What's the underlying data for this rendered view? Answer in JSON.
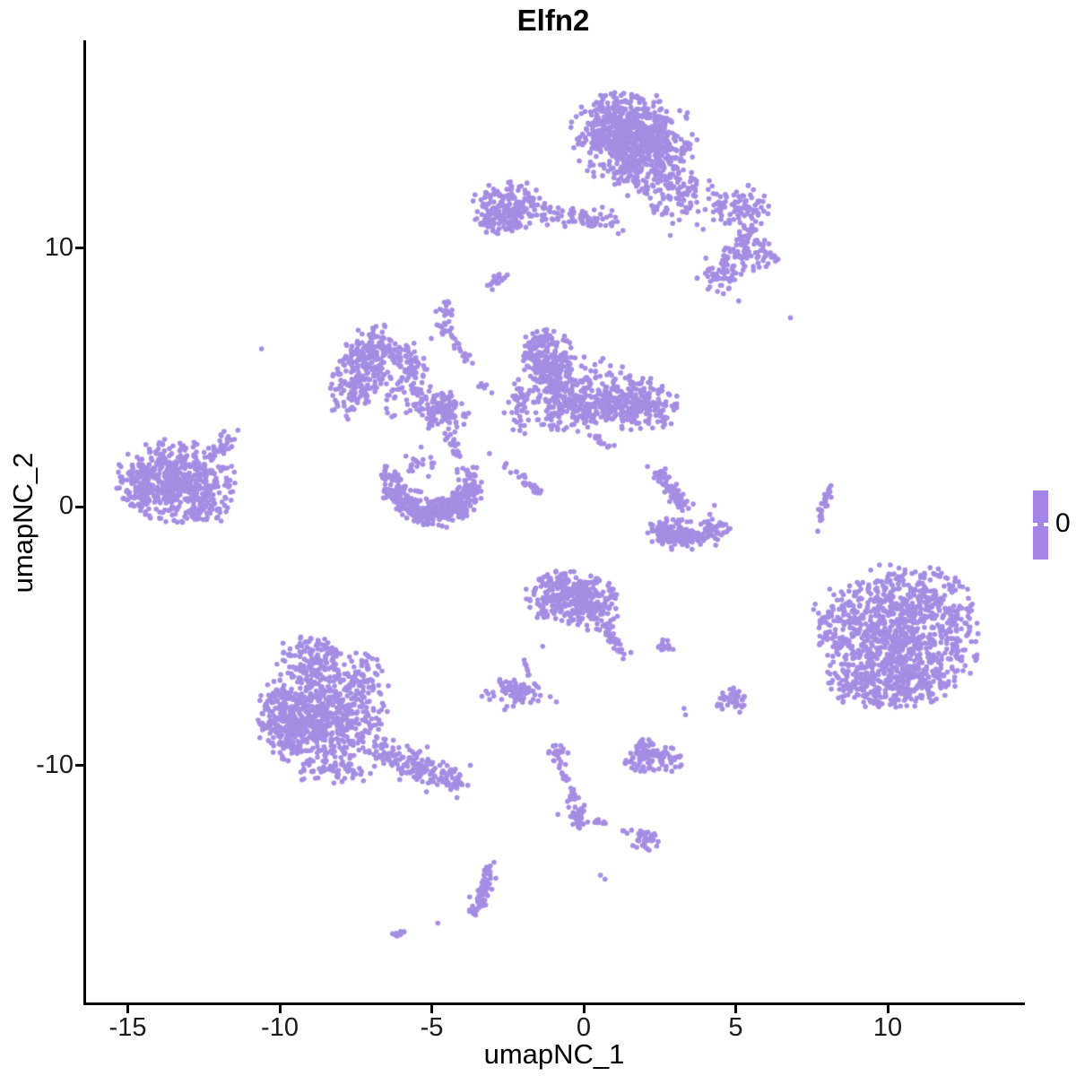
{
  "chart_data": {
    "type": "scatter",
    "title": "Elfn2",
    "xlabel": "umapNC_1",
    "ylabel": "umapNC_2",
    "x_ticks": [
      -15,
      -10,
      -5,
      0,
      5,
      10
    ],
    "y_ticks": [
      -10,
      0,
      10
    ],
    "x_range": [
      -16.4,
      14.5
    ],
    "y_range": [
      -19.2,
      18.0
    ],
    "point_color": "#A58DE3",
    "legend": {
      "label": "0",
      "bar_color": "#A586E8"
    },
    "clusters": [
      {
        "type": "blob",
        "n": 380,
        "cx": 1.2,
        "cy": 14.7,
        "sx": 0.75,
        "sy": 0.6,
        "clip": 2.2
      },
      {
        "type": "blob",
        "n": 320,
        "cx": 2.0,
        "cy": 13.8,
        "sx": 0.75,
        "sy": 0.65,
        "clip": 2.2
      },
      {
        "type": "blob",
        "n": 140,
        "cx": 1.6,
        "cy": 14.2,
        "sx": 1.2,
        "sy": 1.05,
        "clip": 1.8
      },
      {
        "type": "line",
        "n": 50,
        "x1": 0.9,
        "y1": 12.9,
        "x2": 2.6,
        "y2": 12.4,
        "jitter": 0.3
      },
      {
        "type": "line",
        "n": 70,
        "x1": 2.6,
        "y1": 12.5,
        "x2": 4.4,
        "y2": 11.4,
        "jitter": 0.4
      },
      {
        "type": "blob",
        "n": 50,
        "cx": 2.9,
        "cy": 11.8,
        "sx": 0.5,
        "sy": 0.8,
        "clip": 2
      },
      {
        "type": "blob",
        "n": 80,
        "cx": 5.25,
        "cy": 11.55,
        "sx": 0.45,
        "sy": 0.5,
        "clip": 2
      },
      {
        "type": "line",
        "n": 15,
        "x1": 5.35,
        "y1": 11.0,
        "x2": 5.45,
        "y2": 10.3,
        "jitter": 0.15
      },
      {
        "type": "blob",
        "n": 70,
        "cx": 5.45,
        "cy": 9.8,
        "sx": 0.5,
        "sy": 0.45,
        "clip": 2
      },
      {
        "type": "blob",
        "n": 60,
        "cx": 4.5,
        "cy": 8.95,
        "sx": 0.45,
        "sy": 0.4,
        "clip": 2
      },
      {
        "type": "blob",
        "n": 6,
        "cx": 6.15,
        "cy": 9.7,
        "sx": 0.15,
        "sy": 0.2,
        "clip": 2
      },
      {
        "type": "blob",
        "n": 200,
        "cx": -2.4,
        "cy": 11.6,
        "sx": 0.7,
        "sy": 0.5,
        "clip": 2
      },
      {
        "type": "blob",
        "n": 50,
        "cx": -2.7,
        "cy": 10.95,
        "sx": 0.5,
        "sy": 0.25,
        "clip": 2
      },
      {
        "type": "line",
        "n": 60,
        "x1": -1.3,
        "y1": 11.35,
        "x2": 1.25,
        "y2": 11.0,
        "jitter": 0.18
      },
      {
        "type": "line",
        "n": 20,
        "x1": -3.1,
        "y1": 8.45,
        "x2": -2.65,
        "y2": 8.95,
        "jitter": 0.07
      },
      {
        "type": "blob",
        "n": 30,
        "cx": -4.6,
        "cy": 7.3,
        "sx": 0.18,
        "sy": 0.38,
        "clip": 2
      },
      {
        "type": "line",
        "n": 16,
        "x1": -4.35,
        "y1": 6.6,
        "x2": -3.7,
        "y2": 5.45,
        "jitter": 0.08
      },
      {
        "type": "line",
        "n": 8,
        "x1": -3.45,
        "y1": 4.75,
        "x2": -3.05,
        "y2": 4.4,
        "jitter": 0.06
      },
      {
        "type": "blob",
        "n": 240,
        "cx": -7.35,
        "cy": 5.25,
        "sx": 0.42,
        "sy": 1.0,
        "rot": -18,
        "clip": 2
      },
      {
        "type": "line",
        "n": 60,
        "x1": -7.0,
        "y1": 6.1,
        "x2": -5.4,
        "y2": 5.7,
        "jitter": 0.22
      },
      {
        "type": "blob",
        "n": 70,
        "cx": -5.9,
        "cy": 4.6,
        "sx": 0.7,
        "sy": 0.6,
        "clip": 2
      },
      {
        "type": "blob",
        "n": 25,
        "cx": -5.7,
        "cy": 5.25,
        "sx": 0.3,
        "sy": 0.18,
        "clip": 2
      },
      {
        "type": "blob",
        "n": 130,
        "cx": -4.65,
        "cy": 3.7,
        "sx": 0.5,
        "sy": 0.38,
        "clip": 2
      },
      {
        "type": "line",
        "n": 22,
        "x1": -4.5,
        "y1": 3.15,
        "x2": -4.2,
        "y2": 1.95,
        "jitter": 0.1
      },
      {
        "type": "blob",
        "n": 240,
        "cx": -1.15,
        "cy": 5.45,
        "sx": 0.45,
        "sy": 0.7,
        "clip": 2
      },
      {
        "type": "blob",
        "n": 240,
        "cx": -0.35,
        "cy": 3.95,
        "sx": 0.85,
        "sy": 0.55,
        "clip": 2
      },
      {
        "type": "blob",
        "n": 200,
        "cx": 1.75,
        "cy": 3.95,
        "sx": 0.7,
        "sy": 0.5,
        "clip": 2
      },
      {
        "type": "blob",
        "n": 90,
        "cx": 0.55,
        "cy": 4.5,
        "sx": 1.0,
        "sy": 0.75,
        "clip": 1.8
      },
      {
        "type": "blob",
        "n": 45,
        "cx": -2.05,
        "cy": 3.9,
        "sx": 0.3,
        "sy": 0.55,
        "clip": 2
      },
      {
        "type": "blob",
        "n": 30,
        "cx": -1.5,
        "cy": 6.3,
        "sx": 0.25,
        "sy": 0.3,
        "clip": 2
      },
      {
        "type": "line",
        "n": 12,
        "x1": 0.2,
        "y1": 2.8,
        "x2": 0.9,
        "y2": 2.35,
        "jitter": 0.12
      },
      {
        "type": "blob",
        "n": 8,
        "cx": 2.7,
        "cy": 3.3,
        "sx": 0.15,
        "sy": 0.15,
        "clip": 2
      },
      {
        "type": "line",
        "n": 30,
        "x1": -2.6,
        "y1": 1.7,
        "x2": -1.4,
        "y2": 0.4,
        "jitter": 0.07
      },
      {
        "type": "blob",
        "n": 550,
        "cx": -13.4,
        "cy": 1.0,
        "sx": 1.0,
        "sy": 0.8,
        "clip": 2.05
      },
      {
        "type": "line",
        "n": 25,
        "x1": -12.3,
        "y1": 2.0,
        "x2": -11.4,
        "y2": 2.75,
        "jitter": 0.13
      },
      {
        "type": "blob",
        "n": 45,
        "cx": -12.4,
        "cy": -0.15,
        "sx": 0.45,
        "sy": 0.3,
        "clip": 2
      },
      {
        "type": "blob",
        "n": 60,
        "cx": -14.5,
        "cy": 0.7,
        "sx": 0.3,
        "sy": 0.5,
        "clip": 2
      },
      {
        "type": "arc",
        "n": 270,
        "cx": -4.95,
        "cy": 0.9,
        "r": 1.3,
        "a1": 185,
        "a2": 355,
        "jr": 0.2
      },
      {
        "type": "arc",
        "n": 90,
        "cx": -4.95,
        "cy": 0.9,
        "r": 0.95,
        "a1": 205,
        "a2": 335,
        "jr": 0.18
      },
      {
        "type": "blob",
        "n": 40,
        "cx": -6.3,
        "cy": 0.9,
        "sx": 0.22,
        "sy": 0.4,
        "clip": 2
      },
      {
        "type": "blob",
        "n": 45,
        "cx": -3.8,
        "cy": 0.95,
        "sx": 0.22,
        "sy": 0.45,
        "clip": 2
      },
      {
        "type": "blob",
        "n": 18,
        "cx": -5.4,
        "cy": 1.7,
        "sx": 0.5,
        "sy": 0.3,
        "clip": 2
      },
      {
        "type": "line",
        "n": 80,
        "x1": 2.45,
        "y1": 1.35,
        "x2": 3.3,
        "y2": 0.0,
        "jitter": 0.15
      },
      {
        "type": "arc",
        "n": 160,
        "cx": 3.4,
        "cy": 0.2,
        "r": 1.45,
        "a1": 215,
        "a2": 325,
        "jr": 0.2
      },
      {
        "type": "blob",
        "n": 60,
        "cx": 3.0,
        "cy": -1.05,
        "sx": 0.45,
        "sy": 0.3,
        "clip": 2
      },
      {
        "type": "line",
        "n": 30,
        "x1": 8.1,
        "y1": 0.8,
        "x2": 7.75,
        "y2": -0.7,
        "jitter": 0.06
      },
      {
        "type": "blob",
        "n": 750,
        "cx": 10.3,
        "cy": -5.3,
        "sx": 1.3,
        "sy": 1.2,
        "clip": 2.1
      },
      {
        "type": "blob",
        "n": 150,
        "cx": 10.6,
        "cy": -3.3,
        "sx": 1.1,
        "sy": 0.6,
        "clip": 2
      },
      {
        "type": "blob",
        "n": 70,
        "cx": 8.4,
        "cy": -4.6,
        "sx": 0.5,
        "sy": 0.85,
        "clip": 2
      },
      {
        "type": "blob",
        "n": 180,
        "cx": 10.0,
        "cy": -6.9,
        "sx": 1.0,
        "sy": 0.5,
        "clip": 2
      },
      {
        "type": "blob",
        "n": 60,
        "cx": 12.3,
        "cy": -4.6,
        "sx": 0.35,
        "sy": 0.8,
        "clip": 2
      },
      {
        "type": "blob",
        "n": 260,
        "cx": -0.45,
        "cy": -3.55,
        "sx": 0.8,
        "sy": 0.55,
        "clip": 2
      },
      {
        "type": "blob",
        "n": 50,
        "cx": -0.7,
        "cy": -2.95,
        "sx": 0.45,
        "sy": 0.25,
        "clip": 2
      },
      {
        "type": "blob",
        "n": 70,
        "cx": 0.35,
        "cy": -4.0,
        "sx": 0.45,
        "sy": 0.45,
        "clip": 2
      },
      {
        "type": "line",
        "n": 35,
        "x1": 0.75,
        "y1": -4.55,
        "x2": 1.3,
        "y2": -5.8,
        "jitter": 0.1
      },
      {
        "type": "blob",
        "n": 12,
        "cx": 2.75,
        "cy": -5.5,
        "sx": 0.16,
        "sy": 0.22,
        "clip": 2
      },
      {
        "type": "blob",
        "n": 80,
        "cx": -2.35,
        "cy": -7.2,
        "sx": 0.55,
        "sy": 0.3,
        "clip": 1.9
      },
      {
        "type": "line",
        "n": 8,
        "x1": -1.95,
        "y1": -6.05,
        "x2": -1.8,
        "y2": -6.6,
        "jitter": 0.05
      },
      {
        "type": "blob",
        "n": 40,
        "cx": 4.9,
        "cy": -7.5,
        "sx": 0.28,
        "sy": 0.26,
        "clip": 2
      },
      {
        "type": "blob",
        "n": 130,
        "cx": -8.95,
        "cy": -5.85,
        "sx": 0.6,
        "sy": 0.5,
        "clip": 2
      },
      {
        "type": "blob",
        "n": 650,
        "cx": -8.65,
        "cy": -8.1,
        "sx": 1.05,
        "sy": 1.0,
        "clip": 2.1
      },
      {
        "type": "blob",
        "n": 130,
        "cx": -9.85,
        "cy": -8.4,
        "sx": 0.45,
        "sy": 0.7,
        "clip": 2
      },
      {
        "type": "line",
        "n": 170,
        "x1": -6.8,
        "y1": -9.3,
        "x2": -4.05,
        "y2": -10.85,
        "jitter": 0.28
      },
      {
        "type": "blob",
        "n": 50,
        "cx": -7.2,
        "cy": -6.4,
        "sx": 0.5,
        "sy": 0.45,
        "clip": 2
      },
      {
        "type": "blob",
        "n": 60,
        "cx": -8.2,
        "cy": -10.2,
        "sx": 0.7,
        "sy": 0.3,
        "clip": 2
      },
      {
        "type": "blob",
        "n": 100,
        "cx": 2.3,
        "cy": -9.75,
        "sx": 0.5,
        "sy": 0.3,
        "clip": 2
      },
      {
        "type": "blob",
        "n": 20,
        "cx": 1.95,
        "cy": -9.25,
        "sx": 0.2,
        "sy": 0.15,
        "clip": 2
      },
      {
        "type": "blob",
        "n": 22,
        "cx": -0.85,
        "cy": -9.55,
        "sx": 0.2,
        "sy": 0.28,
        "clip": 2
      },
      {
        "type": "line",
        "n": 22,
        "x1": -0.7,
        "y1": -10.15,
        "x2": -0.3,
        "y2": -11.4,
        "jitter": 0.09
      },
      {
        "type": "blob",
        "n": 35,
        "cx": -0.22,
        "cy": -11.95,
        "sx": 0.2,
        "sy": 0.35,
        "clip": 2
      },
      {
        "type": "line",
        "n": 9,
        "x1": 0.15,
        "y1": -12.05,
        "x2": 0.85,
        "y2": -12.3,
        "jitter": 0.05
      },
      {
        "type": "blob",
        "n": 4,
        "cx": 1.4,
        "cy": -12.55,
        "sx": 0.1,
        "sy": 0.08,
        "clip": 2
      },
      {
        "type": "blob",
        "n": 28,
        "cx": 2.05,
        "cy": -12.9,
        "sx": 0.26,
        "sy": 0.22,
        "clip": 2
      },
      {
        "type": "line",
        "n": 5,
        "x1": 1.85,
        "y1": -12.5,
        "x2": 2.0,
        "y2": -12.7,
        "jitter": 0.04
      },
      {
        "type": "line",
        "n": 35,
        "x1": -3.05,
        "y1": -13.85,
        "x2": -3.3,
        "y2": -14.9,
        "jitter": 0.11
      },
      {
        "type": "line",
        "n": 30,
        "x1": -3.3,
        "y1": -14.9,
        "x2": -3.65,
        "y2": -15.85,
        "jitter": 0.1
      },
      {
        "type": "line",
        "n": 10,
        "x1": -6.35,
        "y1": -16.7,
        "x2": -5.9,
        "y2": -16.45,
        "jitter": 0.06
      }
    ],
    "singles": [
      [
        -10.6,
        6.1
      ],
      [
        6.8,
        7.3
      ],
      [
        5.1,
        7.95
      ],
      [
        -3.5,
        11.4
      ],
      [
        -3.35,
        10.9
      ],
      [
        -3.1,
        2.05
      ],
      [
        -2.6,
        -7.85
      ],
      [
        -1.1,
        -7.35
      ],
      [
        -0.9,
        -7.55
      ],
      [
        -0.85,
        -11.9
      ],
      [
        -4.8,
        -16.1
      ],
      [
        2.6,
        -5.15
      ],
      [
        4.3,
        0.05
      ],
      [
        4.15,
        -0.3
      ],
      [
        2.1,
        1.55
      ],
      [
        7.7,
        -0.95
      ],
      [
        -1.35,
        -5.4
      ],
      [
        -5.35,
        2.3
      ],
      [
        -5.85,
        1.95
      ],
      [
        3.3,
        -7.8
      ],
      [
        3.35,
        -8.05
      ],
      [
        0.55,
        -14.25
      ],
      [
        0.7,
        -14.4
      ],
      [
        -2.95,
        -13.75
      ]
    ]
  }
}
